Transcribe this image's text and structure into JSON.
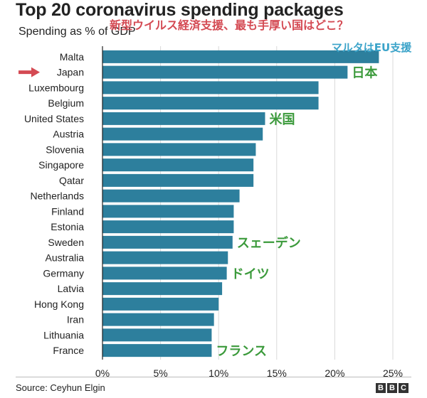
{
  "chart_data": {
    "type": "bar",
    "orientation": "horizontal",
    "title": "Top 20 coronavirus spending packages",
    "subtitle": "Spending as % of GDP",
    "categories": [
      "Malta",
      "Japan",
      "Luxembourg",
      "Belgium",
      "United States",
      "Austria",
      "Slovenia",
      "Singapore",
      "Qatar",
      "Netherlands",
      "Finland",
      "Estonia",
      "Sweden",
      "Australia",
      "Germany",
      "Latvia",
      "Hong Kong",
      "Iran",
      "Lithuania",
      "France"
    ],
    "values": [
      23.8,
      21.1,
      18.6,
      18.6,
      14.0,
      13.8,
      13.2,
      13.0,
      13.0,
      11.8,
      11.3,
      11.3,
      11.2,
      10.8,
      10.7,
      10.3,
      10.0,
      9.6,
      9.4,
      9.4
    ],
    "xlim": [
      0,
      25
    ],
    "x_ticks": [
      "0%",
      "5%",
      "10%",
      "15%",
      "20%",
      "25%"
    ],
    "grid": true,
    "bar_color": "#2d7f9d",
    "highlight_category": "Japan"
  },
  "annotations": {
    "headline": "新型ウイルス経済支援、最も手厚い国はどこ？",
    "headline_color": "#d44a53",
    "label_color": "#3b9a3b",
    "malta_note": "マルタはEU支援",
    "malta_note_color": "#3aa3c9",
    "arrow_color": "#d44a53",
    "bar_labels": [
      {
        "category": "Japan",
        "text": "日本"
      },
      {
        "category": "United States",
        "text": "米国"
      },
      {
        "category": "Sweden",
        "text": "スェーデン"
      },
      {
        "category": "Germany",
        "text": "ドイツ"
      },
      {
        "category": "France",
        "text": "フランス"
      }
    ]
  },
  "footer": {
    "source": "Source: Ceyhun Elgin",
    "logo_letters": [
      "B",
      "B",
      "C"
    ]
  }
}
